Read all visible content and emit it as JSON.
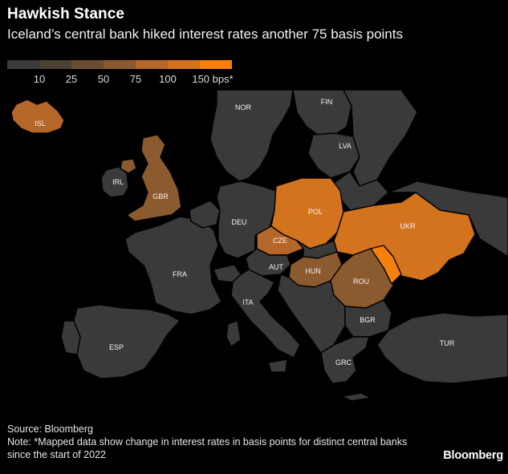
{
  "header": {
    "title": "Hawkish Stance",
    "subtitle": "Iceland’s central bank hiked interest rates another 75 basis points"
  },
  "legend": {
    "bins": [
      {
        "color": "#3a3a3a",
        "label": ""
      },
      {
        "color": "#4b4034",
        "label": "10"
      },
      {
        "color": "#6b4c31",
        "label": "25"
      },
      {
        "color": "#8c5a2f",
        "label": "50"
      },
      {
        "color": "#b5672a",
        "label": "75"
      },
      {
        "color": "#d3731e",
        "label": "100"
      },
      {
        "color": "#f57f0f",
        "label": "150 bps*"
      }
    ]
  },
  "map": {
    "countries": [
      {
        "code": "NOR",
        "bin": 0
      },
      {
        "code": "FIN",
        "bin": 0
      },
      {
        "code": "LVA",
        "bin": 0
      },
      {
        "code": "ISL",
        "bin": 4
      },
      {
        "code": "IRL",
        "bin": 0
      },
      {
        "code": "GBR",
        "bin": 3
      },
      {
        "code": "DEU",
        "bin": 0
      },
      {
        "code": "POL",
        "bin": 5
      },
      {
        "code": "UKR",
        "bin": 5
      },
      {
        "code": "CZE",
        "bin": 4
      },
      {
        "code": "AUT",
        "bin": 0
      },
      {
        "code": "HUN",
        "bin": 3
      },
      {
        "code": "ROU",
        "bin": 3
      },
      {
        "code": "MDA",
        "bin": 6
      },
      {
        "code": "FRA",
        "bin": 0
      },
      {
        "code": "ITA",
        "bin": 0
      },
      {
        "code": "BGR",
        "bin": 0
      },
      {
        "code": "ESP",
        "bin": 0
      },
      {
        "code": "TUR",
        "bin": 0
      },
      {
        "code": "GRC",
        "bin": 0
      }
    ]
  },
  "footer": {
    "source": "Source: Bloomberg",
    "note": "Note: *Mapped data show change in interest rates in basis points for distinct central banks since the start of 2022",
    "brand": "Bloomberg"
  }
}
